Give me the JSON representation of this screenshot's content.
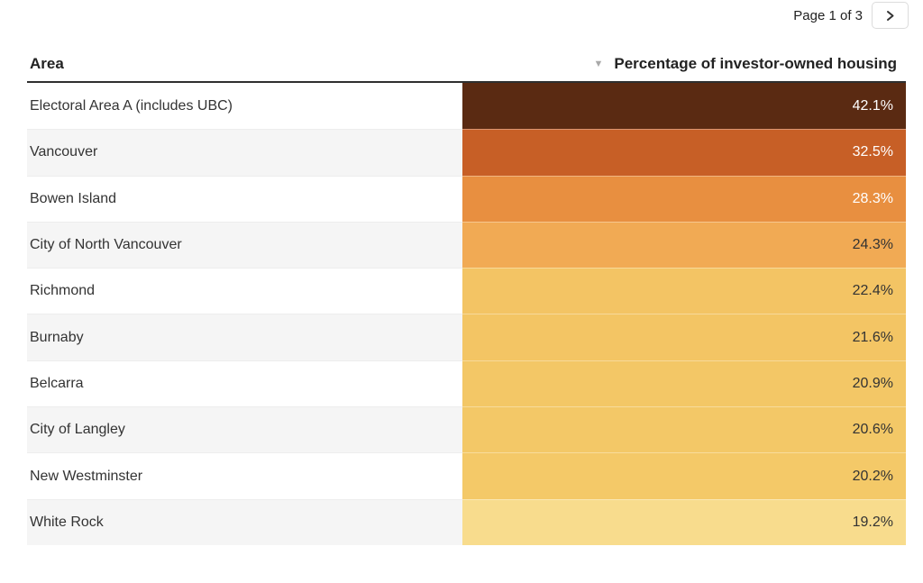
{
  "pagination": {
    "label": "Page 1 of 3"
  },
  "icons": {
    "next": "chevron-right",
    "sort": "triangle-down",
    "sort_glyph": "▼"
  },
  "table": {
    "columns": [
      {
        "label": "Area"
      },
      {
        "label": "Percentage of investor-owned housing"
      }
    ],
    "rows": [
      {
        "area": "Electoral Area A (includes UBC)",
        "value": "42.1%",
        "bg": "#5a2a12",
        "fg": "#ffffff"
      },
      {
        "area": "Vancouver",
        "value": "32.5%",
        "bg": "#c75f26",
        "fg": "#ffffff"
      },
      {
        "area": "Bowen Island",
        "value": "28.3%",
        "bg": "#e88f40",
        "fg": "#ffffff"
      },
      {
        "area": "City of North Vancouver",
        "value": "24.3%",
        "bg": "#f1aa54",
        "fg": "#333333"
      },
      {
        "area": "Richmond",
        "value": "22.4%",
        "bg": "#f3c464",
        "fg": "#333333"
      },
      {
        "area": "Burnaby",
        "value": "21.6%",
        "bg": "#f3c564",
        "fg": "#333333"
      },
      {
        "area": "Belcarra",
        "value": "20.9%",
        "bg": "#f3c766",
        "fg": "#333333"
      },
      {
        "area": "City of Langley",
        "value": "20.6%",
        "bg": "#f3c867",
        "fg": "#333333"
      },
      {
        "area": "New Westminster",
        "value": "20.2%",
        "bg": "#f4c968",
        "fg": "#333333"
      },
      {
        "area": "White Rock",
        "value": "19.2%",
        "bg": "#f8dc8d",
        "fg": "#333333"
      }
    ]
  },
  "chart_data": {
    "type": "table",
    "columns": [
      "Area",
      "Percentage of investor-owned housing"
    ],
    "rows": [
      [
        "Electoral Area A (includes UBC)",
        42.1
      ],
      [
        "Vancouver",
        32.5
      ],
      [
        "Bowen Island",
        28.3
      ],
      [
        "City of North Vancouver",
        24.3
      ],
      [
        "Richmond",
        22.4
      ],
      [
        "Burnaby",
        21.6
      ],
      [
        "Belcarra",
        20.9
      ],
      [
        "City of Langley",
        20.6
      ],
      [
        "New Westminster",
        20.2
      ],
      [
        "White Rock",
        19.2
      ]
    ],
    "value_unit": "%",
    "sort": {
      "column": "Percentage of investor-owned housing",
      "order": "descending"
    },
    "color_scale": [
      "#f8dc8d",
      "#f3c464",
      "#f1aa54",
      "#e88f40",
      "#c75f26",
      "#5a2a12"
    ],
    "pagination": {
      "current_page": 1,
      "total_pages": 3
    }
  }
}
